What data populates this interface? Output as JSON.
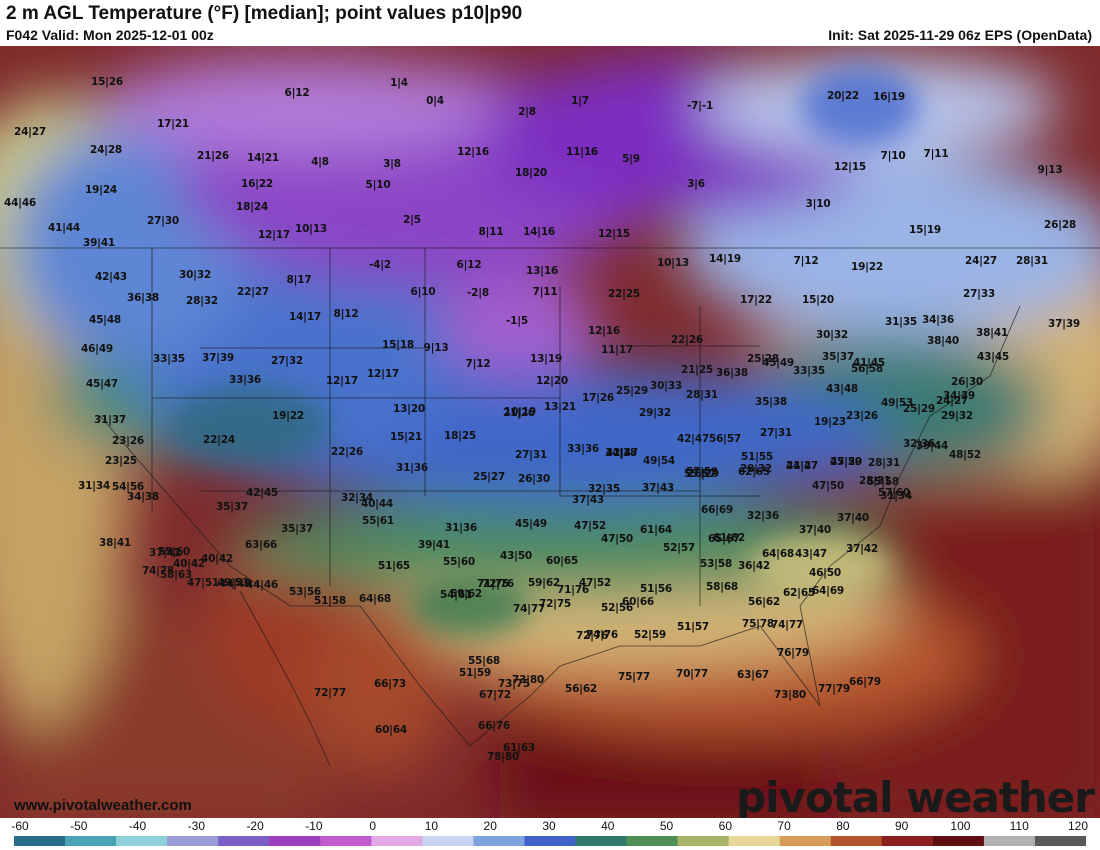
{
  "header": {
    "title": "2 m AGL Temperature (°F) [median]; point values p10|p90",
    "valid": "F042 Valid: Mon 2025-12-01 00z",
    "init": "Init: Sat 2025-11-29 06z EPS (OpenData)"
  },
  "footer": {
    "website": "www.pivotalweather.com",
    "brand": "pivotal weather"
  },
  "legend": {
    "ticks": [
      "-60",
      "-50",
      "-40",
      "-30",
      "-20",
      "-10",
      "0",
      "10",
      "20",
      "30",
      "40",
      "50",
      "60",
      "70",
      "80",
      "90",
      "100",
      "110",
      "120"
    ],
    "colors": [
      "#2a6f8a",
      "#4aa3b5",
      "#8fd0d8",
      "#9a9ad6",
      "#7a5fc4",
      "#9b3fbf",
      "#c35bd0",
      "#e3a8e6",
      "#c9d4ef",
      "#7fa3df",
      "#3f63c9",
      "#2f7a6a",
      "#4f8f55",
      "#a7b56a",
      "#e8d79a",
      "#d79c5a",
      "#b3562f",
      "#8c2020",
      "#5e0f12",
      "#b0b0b0",
      "#5a5a5a"
    ]
  },
  "points": [
    {
      "label": "15|26"
    },
    {
      "label": "6|12"
    },
    {
      "label": "1|4"
    },
    {
      "label": "0|4"
    },
    {
      "label": "24|27"
    },
    {
      "label": "17|21"
    },
    {
      "label": "2|8"
    },
    {
      "label": "1|7"
    },
    {
      "label": "-7|-1"
    },
    {
      "label": "20|22"
    },
    {
      "label": "16|19"
    },
    {
      "label": "24|28"
    },
    {
      "label": "21|26"
    },
    {
      "label": "14|21"
    },
    {
      "label": "4|8"
    },
    {
      "label": "3|8"
    },
    {
      "label": "12|16"
    },
    {
      "label": "11|16"
    },
    {
      "label": "5|9"
    },
    {
      "label": "12|15"
    },
    {
      "label": "7|10"
    },
    {
      "label": "7|11"
    },
    {
      "label": "9|13"
    },
    {
      "label": "19|24"
    },
    {
      "label": "16|22"
    },
    {
      "label": "5|10"
    },
    {
      "label": "18|20"
    },
    {
      "label": "3|6"
    },
    {
      "label": "44|46"
    },
    {
      "label": "18|24"
    },
    {
      "label": "3|10"
    },
    {
      "label": "27|30"
    },
    {
      "label": "2|5"
    },
    {
      "label": "41|44"
    },
    {
      "label": "12|17"
    },
    {
      "label": "10|13"
    },
    {
      "label": "8|11"
    },
    {
      "label": "14|16"
    },
    {
      "label": "12|15"
    },
    {
      "label": "15|19"
    },
    {
      "label": "26|28"
    },
    {
      "label": "39|41"
    },
    {
      "label": "10|13"
    },
    {
      "label": "14|19"
    },
    {
      "label": "7|12"
    },
    {
      "label": "19|22"
    },
    {
      "label": "24|27"
    },
    {
      "label": "28|31"
    },
    {
      "label": "-4|2"
    },
    {
      "label": "6|12"
    },
    {
      "label": "13|16"
    },
    {
      "label": "42|43"
    },
    {
      "label": "30|32"
    },
    {
      "label": "8|17"
    },
    {
      "label": "22|27"
    },
    {
      "label": "6|10"
    },
    {
      "label": "-2|8"
    },
    {
      "label": "7|11"
    },
    {
      "label": "22|25"
    },
    {
      "label": "17|22"
    },
    {
      "label": "15|20"
    },
    {
      "label": "27|33"
    },
    {
      "label": "36|38"
    },
    {
      "label": "28|32"
    },
    {
      "label": "8|12"
    },
    {
      "label": "-1|5"
    },
    {
      "label": "31|35"
    },
    {
      "label": "34|36"
    },
    {
      "label": "37|39"
    },
    {
      "label": "45|48"
    },
    {
      "label": "14|17"
    },
    {
      "label": "12|16"
    },
    {
      "label": "38|41"
    },
    {
      "label": "46|49"
    },
    {
      "label": "33|35"
    },
    {
      "label": "37|39"
    },
    {
      "label": "27|32"
    },
    {
      "label": "15|18"
    },
    {
      "label": "9|13"
    },
    {
      "label": "13|19"
    },
    {
      "label": "11|17"
    },
    {
      "label": "22|26"
    },
    {
      "label": "30|32"
    },
    {
      "label": "38|40"
    },
    {
      "label": "43|45"
    },
    {
      "label": "45|47"
    },
    {
      "label": "33|36"
    },
    {
      "label": "12|17"
    },
    {
      "label": "12|17"
    },
    {
      "label": "7|12"
    },
    {
      "label": "12|20"
    },
    {
      "label": "21|25"
    },
    {
      "label": "25|28"
    },
    {
      "label": "33|35"
    },
    {
      "label": "35|37"
    },
    {
      "label": "56|58"
    },
    {
      "label": "31|37"
    },
    {
      "label": "19|22"
    },
    {
      "label": "13|20"
    },
    {
      "label": "10|19"
    },
    {
      "label": "13|21"
    },
    {
      "label": "17|26"
    },
    {
      "label": "25|29"
    },
    {
      "label": "30|33"
    },
    {
      "label": "36|38"
    },
    {
      "label": "45|49"
    },
    {
      "label": "41|45"
    },
    {
      "label": "26|30"
    },
    {
      "label": "23|26"
    },
    {
      "label": "22|24"
    },
    {
      "label": "15|21"
    },
    {
      "label": "18|25"
    },
    {
      "label": "21|26"
    },
    {
      "label": "29|32"
    },
    {
      "label": "28|31"
    },
    {
      "label": "35|38"
    },
    {
      "label": "43|48"
    },
    {
      "label": "49|53"
    },
    {
      "label": "34|39"
    },
    {
      "label": "24|27"
    },
    {
      "label": "23|25"
    },
    {
      "label": "22|26"
    },
    {
      "label": "27|31"
    },
    {
      "label": "33|36"
    },
    {
      "label": "34|38"
    },
    {
      "label": "42|47"
    },
    {
      "label": "56|57"
    },
    {
      "label": "27|31"
    },
    {
      "label": "19|23"
    },
    {
      "label": "23|26"
    },
    {
      "label": "25|29"
    },
    {
      "label": "29|32"
    },
    {
      "label": "31|34"
    },
    {
      "label": "31|36"
    },
    {
      "label": "42|47"
    },
    {
      "label": "49|54"
    },
    {
      "label": "55|57"
    },
    {
      "label": "51|55"
    },
    {
      "label": "24|27"
    },
    {
      "label": "27|29"
    },
    {
      "label": "28|31"
    },
    {
      "label": "32|36"
    },
    {
      "label": "39|44"
    },
    {
      "label": "48|52"
    },
    {
      "label": "54|56"
    },
    {
      "label": "42|45"
    },
    {
      "label": "25|27"
    },
    {
      "label": "26|30"
    },
    {
      "label": "26|29"
    },
    {
      "label": "28|32"
    },
    {
      "label": "41|47"
    },
    {
      "label": "45|50"
    },
    {
      "label": "55|58"
    },
    {
      "label": "57|60"
    },
    {
      "label": "35|37"
    },
    {
      "label": "32|34"
    },
    {
      "label": "32|35"
    },
    {
      "label": "37|43"
    },
    {
      "label": "57|59"
    },
    {
      "label": "62|65"
    },
    {
      "label": "47|50"
    },
    {
      "label": "28|31"
    },
    {
      "label": "31|34"
    },
    {
      "label": "34|38"
    },
    {
      "label": "35|37"
    },
    {
      "label": "37|43"
    },
    {
      "label": "45|49"
    },
    {
      "label": "47|52"
    },
    {
      "label": "61|64"
    },
    {
      "label": "66|69"
    },
    {
      "label": "32|36"
    },
    {
      "label": "37|40"
    },
    {
      "label": "37|40"
    },
    {
      "label": "38|41"
    },
    {
      "label": "37|42"
    },
    {
      "label": "55|60"
    },
    {
      "label": "63|66"
    },
    {
      "label": "40|44"
    },
    {
      "label": "31|36"
    },
    {
      "label": "39|41"
    },
    {
      "label": "43|50"
    },
    {
      "label": "47|50"
    },
    {
      "label": "52|57"
    },
    {
      "label": "61|62"
    },
    {
      "label": "65|67"
    },
    {
      "label": "64|68"
    },
    {
      "label": "37|42"
    },
    {
      "label": "40|42"
    },
    {
      "label": "40|42"
    },
    {
      "label": "44|46"
    },
    {
      "label": "55|61"
    },
    {
      "label": "55|60"
    },
    {
      "label": "60|65"
    },
    {
      "label": "53|58"
    },
    {
      "label": "36|42"
    },
    {
      "label": "43|47"
    },
    {
      "label": "46|50"
    },
    {
      "label": "47|51"
    },
    {
      "label": "44|49"
    },
    {
      "label": "53|56"
    },
    {
      "label": "51|65"
    },
    {
      "label": "59|62"
    },
    {
      "label": "71|75"
    },
    {
      "label": "59|62"
    },
    {
      "label": "47|52"
    },
    {
      "label": "52|56"
    },
    {
      "label": "51|56"
    },
    {
      "label": "58|68"
    },
    {
      "label": "56|62"
    },
    {
      "label": "62|65"
    },
    {
      "label": "64|69"
    },
    {
      "label": "74|78"
    },
    {
      "label": "58|63"
    },
    {
      "label": "49|53"
    },
    {
      "label": "51|58"
    },
    {
      "label": "64|68"
    },
    {
      "label": "54|61"
    },
    {
      "label": "72|76"
    },
    {
      "label": "74|77"
    },
    {
      "label": "72|75"
    },
    {
      "label": "71|76"
    },
    {
      "label": "72|76"
    },
    {
      "label": "74|76"
    },
    {
      "label": "60|66"
    },
    {
      "label": "52|59"
    },
    {
      "label": "51|57"
    },
    {
      "label": "75|78"
    },
    {
      "label": "74|77"
    },
    {
      "label": "72|77"
    },
    {
      "label": "66|73"
    },
    {
      "label": "51|59"
    },
    {
      "label": "55|68"
    },
    {
      "label": "73|75"
    },
    {
      "label": "67|72"
    },
    {
      "label": "73|80"
    },
    {
      "label": "56|62"
    },
    {
      "label": "75|77"
    },
    {
      "label": "70|77"
    },
    {
      "label": "63|67"
    },
    {
      "label": "76|79"
    },
    {
      "label": "73|80"
    },
    {
      "label": "77|79"
    },
    {
      "label": "66|79"
    },
    {
      "label": "60|64"
    },
    {
      "label": "66|76"
    },
    {
      "label": "78|80"
    },
    {
      "label": "61|63"
    }
  ]
}
